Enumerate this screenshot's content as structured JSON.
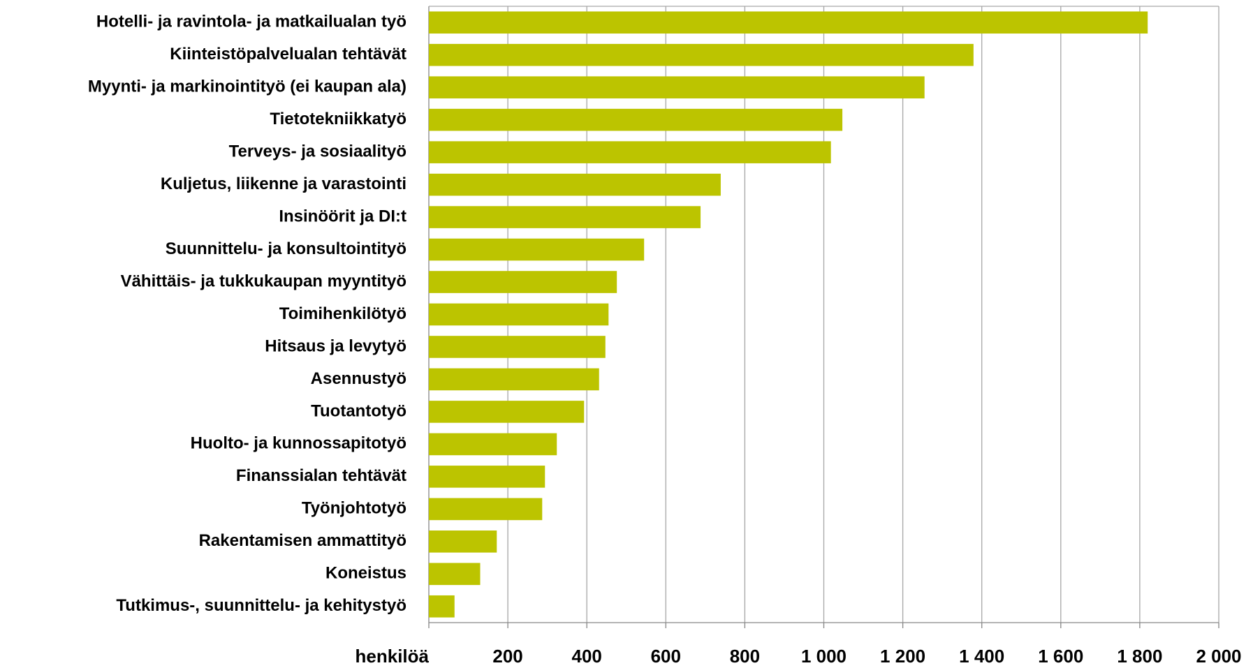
{
  "chart_data": {
    "type": "barh",
    "categories": [
      "Hotelli- ja ravintola- ja matkailualan työ",
      "Kiinteistöpalvelualan tehtävät",
      "Myynti- ja markinointityö (ei kaupan ala)",
      "Tietotekniikkatyö",
      "Terveys- ja sosiaalityö",
      "Kuljetus, liikenne ja varastointi",
      "Insinöörit ja DI:t",
      "Suunnittelu- ja konsultointityö",
      "Vähittäis- ja tukkukaupan myyntityö",
      "Toimihenkilötyö",
      "Hitsaus ja levytyö",
      "Asennustyö",
      "Tuotantotyö",
      "Huolto- ja kunnossapitotyö",
      "Finanssialan tehtävät",
      "Työnjohtotyö",
      "Rakentamisen ammattityö",
      "Koneistus",
      "Tutkimus-, suunnittelu- ja kehitystyö"
    ],
    "values": [
      1820,
      1379,
      1255,
      1047,
      1018,
      739,
      688,
      545,
      476,
      455,
      447,
      431,
      393,
      324,
      294,
      287,
      172,
      130,
      65
    ],
    "color": "#bcc400",
    "xlabel": "henkilöä",
    "xlim": [
      0,
      2000
    ],
    "xticks": [
      200,
      400,
      600,
      800,
      {
        "value": 1000,
        "label": "1 000"
      },
      {
        "value": 1200,
        "label": "1 200"
      },
      {
        "value": 1400,
        "label": "1 400"
      },
      {
        "value": 1600,
        "label": "1 600"
      },
      {
        "value": 1800,
        "label": "1 800"
      },
      {
        "value": 2000,
        "label": "2 000"
      }
    ],
    "grid": true
  }
}
